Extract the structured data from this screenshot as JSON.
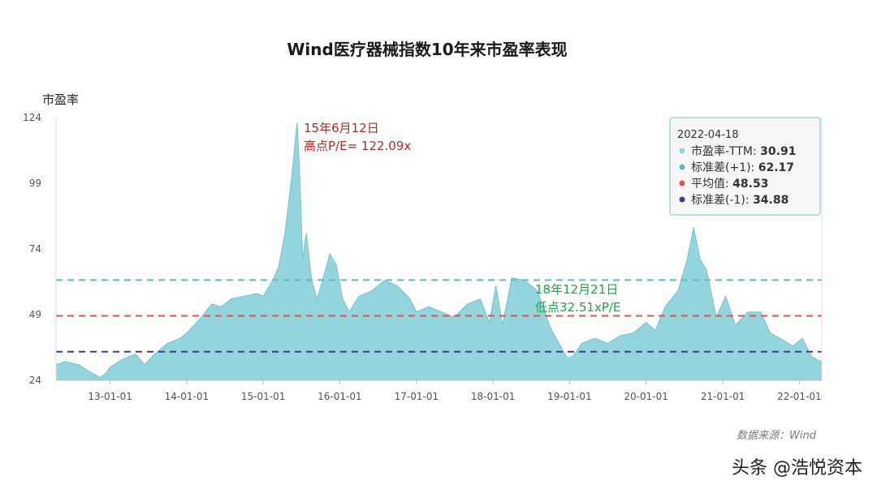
{
  "chart_data": {
    "type": "area",
    "title": "Wind医疗器械指数10年来市盈率表现",
    "ylabel": "市盈率",
    "xlabel": "",
    "ylim": [
      24,
      124
    ],
    "yticks": [
      24,
      49,
      74,
      99,
      124
    ],
    "xticks": [
      "13-01-01",
      "14-01-01",
      "15-01-01",
      "16-01-01",
      "17-01-01",
      "18-01-01",
      "19-01-01",
      "20-01-01",
      "21-01-01",
      "22-01-01"
    ],
    "xticks_iso": [
      "2013-01-01",
      "2014-01-01",
      "2015-01-01",
      "2016-01-01",
      "2017-01-01",
      "2018-01-01",
      "2019-01-01",
      "2020-01-01",
      "2021-01-01",
      "2022-01-01"
    ],
    "xrange": [
      "2012-04-18",
      "2022-04-18"
    ],
    "series": [
      {
        "name": "市盈率-TTM",
        "color": "#94d4dc",
        "points": [
          [
            "2012-04-18",
            30
          ],
          [
            "2012-06-01",
            31
          ],
          [
            "2012-08-01",
            30
          ],
          [
            "2012-10-01",
            27
          ],
          [
            "2012-11-15",
            25
          ],
          [
            "2012-12-15",
            27
          ],
          [
            "2013-01-01",
            29
          ],
          [
            "2013-03-01",
            32
          ],
          [
            "2013-05-01",
            34
          ],
          [
            "2013-06-15",
            30
          ],
          [
            "2013-08-01",
            34
          ],
          [
            "2013-10-01",
            38
          ],
          [
            "2013-12-01",
            40
          ],
          [
            "2014-01-01",
            42
          ],
          [
            "2014-03-01",
            47
          ],
          [
            "2014-05-01",
            53
          ],
          [
            "2014-06-15",
            52
          ],
          [
            "2014-08-01",
            55
          ],
          [
            "2014-10-01",
            56
          ],
          [
            "2014-12-01",
            57
          ],
          [
            "2015-01-01",
            56
          ],
          [
            "2015-02-15",
            62
          ],
          [
            "2015-03-15",
            67
          ],
          [
            "2015-04-15",
            80
          ],
          [
            "2015-05-15",
            100
          ],
          [
            "2015-06-12",
            122.09
          ],
          [
            "2015-06-25",
            100
          ],
          [
            "2015-07-08",
            70
          ],
          [
            "2015-07-25",
            80
          ],
          [
            "2015-08-20",
            62
          ],
          [
            "2015-09-15",
            55
          ],
          [
            "2015-10-15",
            63
          ],
          [
            "2015-11-15",
            72
          ],
          [
            "2015-12-15",
            68
          ],
          [
            "2016-01-15",
            55
          ],
          [
            "2016-02-15",
            50
          ],
          [
            "2016-04-01",
            56
          ],
          [
            "2016-06-01",
            58
          ],
          [
            "2016-08-01",
            62
          ],
          [
            "2016-10-01",
            60
          ],
          [
            "2016-12-01",
            55
          ],
          [
            "2017-01-01",
            50
          ],
          [
            "2017-03-01",
            52
          ],
          [
            "2017-05-01",
            50
          ],
          [
            "2017-07-01",
            48
          ],
          [
            "2017-09-01",
            53
          ],
          [
            "2017-11-01",
            55
          ],
          [
            "2017-12-15",
            46
          ],
          [
            "2018-01-15",
            60
          ],
          [
            "2018-02-15",
            45
          ],
          [
            "2018-04-01",
            63
          ],
          [
            "2018-06-01",
            62
          ],
          [
            "2018-08-01",
            58
          ],
          [
            "2018-10-01",
            44
          ],
          [
            "2018-12-21",
            32.51
          ],
          [
            "2019-01-15",
            33
          ],
          [
            "2019-03-01",
            38
          ],
          [
            "2019-05-01",
            40
          ],
          [
            "2019-07-01",
            38
          ],
          [
            "2019-09-01",
            41
          ],
          [
            "2019-11-01",
            42
          ],
          [
            "2020-01-01",
            46
          ],
          [
            "2020-02-15",
            43
          ],
          [
            "2020-04-01",
            52
          ],
          [
            "2020-06-01",
            58
          ],
          [
            "2020-07-15",
            70
          ],
          [
            "2020-08-15",
            82
          ],
          [
            "2020-09-15",
            70
          ],
          [
            "2020-10-15",
            66
          ],
          [
            "2020-12-01",
            48
          ],
          [
            "2021-01-15",
            56
          ],
          [
            "2021-03-01",
            45
          ],
          [
            "2021-05-01",
            50
          ],
          [
            "2021-07-01",
            50
          ],
          [
            "2021-08-15",
            42
          ],
          [
            "2021-10-01",
            40
          ],
          [
            "2021-12-01",
            37
          ],
          [
            "2022-01-15",
            40
          ],
          [
            "2022-03-01",
            33
          ],
          [
            "2022-04-18",
            30.91
          ]
        ]
      },
      {
        "name": "标准差(+1)",
        "value": 62.17,
        "color": "#5bbcc6"
      },
      {
        "name": "平均值",
        "value": 48.53,
        "color": "#d9534f"
      },
      {
        "name": "标准差(-1)",
        "value": 34.88,
        "color": "#3a3d8c"
      }
    ],
    "annotations": {
      "high": {
        "line1": "15年6月12日",
        "line2": "高点P/E= 122.09x",
        "date": "2015-06-12",
        "value": 122.09,
        "color": "#b5282b"
      },
      "low": {
        "line1": "18年12月21日",
        "line2": "低点32.51xP/E",
        "date": "2018-12-21",
        "value": 32.51,
        "color": "#1aa64a"
      }
    },
    "tooltip": {
      "date": "2022-04-18",
      "rows": [
        {
          "label": "市盈率-TTM: ",
          "value": "30.91",
          "color": "#94d4dc"
        },
        {
          "label": "标准差(+1): ",
          "value": "62.17",
          "color": "#5bbcc6"
        },
        {
          "label": "平均值: ",
          "value": "48.53",
          "color": "#d9534f"
        },
        {
          "label": "标准差(-1): ",
          "value": "34.88",
          "color": "#3a3d8c"
        }
      ]
    },
    "grid": false,
    "legend": "tooltip top-right"
  },
  "source_text": "数据来源：Wind",
  "watermark": "头条 @浩悦资本"
}
